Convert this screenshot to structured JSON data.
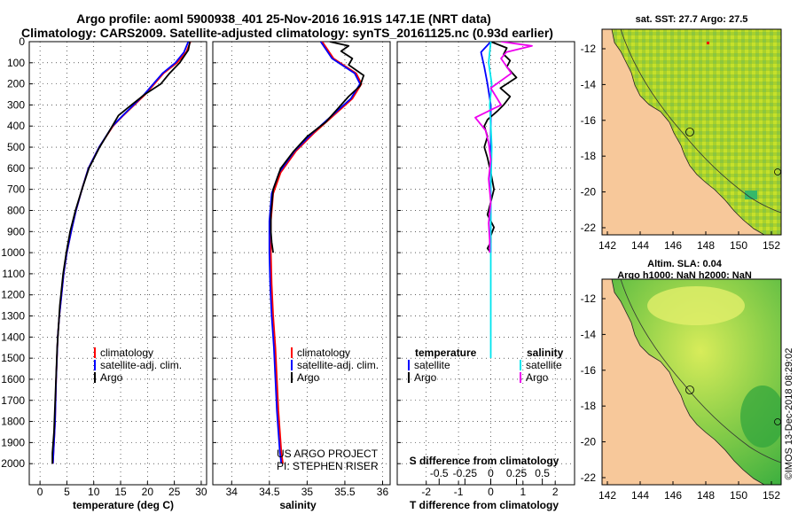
{
  "header": {
    "title_line1": "Argo profile: aoml 5900938_401 25-Nov-2016 16.91S 147.1E (NRT data)",
    "title_line2": "Climatology: CARS2009. Satellite-adjusted climatology: synTS_20161125.nc (0.93d earlier)"
  },
  "colors": {
    "climatology": "#ff0000",
    "satellite": "#0000ff",
    "argo": "#000000",
    "s_satellite": "#00e5ee",
    "s_argo": "#ee00ee",
    "land": "#f7c89a",
    "sst_main": "#99cc33"
  },
  "chart_data": [
    {
      "type": "line",
      "id": "temperature",
      "xlabel": "temperature (deg C)",
      "xlim": [
        -2,
        31
      ],
      "xticks": [
        0,
        5,
        10,
        15,
        20,
        25,
        30
      ],
      "ylim": [
        2100,
        0
      ],
      "yticks": [
        0,
        100,
        200,
        300,
        400,
        500,
        600,
        700,
        800,
        900,
        1000,
        1100,
        1200,
        1300,
        1400,
        1500,
        1600,
        1700,
        1800,
        1900,
        2000
      ],
      "legend": [
        "climatology",
        "satellite-adj. clim.",
        "Argo"
      ],
      "series": [
        {
          "name": "climatology",
          "x": [
            28.0,
            27.2,
            25.5,
            23.0,
            19.6,
            15.5,
            13.6,
            11.0,
            9.0,
            7.8,
            6.7,
            5.8,
            5.0,
            4.4,
            4.0,
            3.6,
            3.3,
            3.0,
            2.8,
            2.6,
            2.4
          ],
          "y": [
            0,
            50,
            100,
            150,
            250,
            350,
            400,
            500,
            600,
            700,
            800,
            900,
            1000,
            1100,
            1200,
            1300,
            1400,
            1600,
            1800,
            1900,
            2000
          ]
        },
        {
          "name": "satellite-adj. clim.",
          "x": [
            27.6,
            26.8,
            25.2,
            22.8,
            19.4,
            15.4,
            13.5,
            11.0,
            9.0,
            7.8,
            6.7,
            5.8,
            5.0,
            4.4,
            4.0,
            3.6,
            3.3,
            3.0,
            2.8,
            2.6,
            2.4
          ],
          "y": [
            0,
            50,
            100,
            150,
            250,
            350,
            400,
            500,
            600,
            700,
            800,
            900,
            1000,
            1100,
            1200,
            1300,
            1400,
            1600,
            1800,
            1900,
            2000
          ]
        },
        {
          "name": "Argo",
          "x": [
            27.9,
            27.6,
            26.0,
            24.1,
            22.5,
            19.5,
            17.0,
            14.6,
            13.0,
            11.1,
            9.1,
            7.8,
            6.6,
            5.6,
            4.9,
            4.3,
            3.7,
            3.2,
            2.9,
            2.6,
            2.3,
            2.3
          ],
          "y": [
            0,
            40,
            100,
            150,
            200,
            250,
            300,
            350,
            420,
            500,
            600,
            700,
            800,
            900,
            1000,
            1100,
            1250,
            1450,
            1650,
            1850,
            1950,
            2000
          ]
        }
      ]
    },
    {
      "type": "line",
      "id": "salinity",
      "xlabel": "salinity",
      "xlim": [
        33.75,
        36.1
      ],
      "xticks": [
        34,
        34.5,
        35,
        35.5,
        36
      ],
      "ylim": [
        2100,
        0
      ],
      "legend": [
        "climatology",
        "satellite-adj. clim.",
        "Argo"
      ],
      "credit": [
        "US ARGO PROJECT",
        "PI: STEPHEN RISER"
      ],
      "series": [
        {
          "name": "climatology",
          "x": [
            35.2,
            35.35,
            35.65,
            35.72,
            35.6,
            35.35,
            35.1,
            34.85,
            34.65,
            34.55,
            34.52,
            34.52,
            34.53,
            34.55,
            34.58,
            34.6,
            34.62,
            34.64,
            34.66,
            34.68
          ],
          "y": [
            0,
            80,
            150,
            200,
            270,
            350,
            430,
            520,
            620,
            720,
            850,
            1000,
            1150,
            1300,
            1450,
            1600,
            1750,
            1850,
            1950,
            2000
          ]
        },
        {
          "name": "satellite-adj. clim.",
          "x": [
            35.18,
            35.33,
            35.63,
            35.7,
            35.58,
            35.33,
            35.08,
            34.83,
            34.63,
            34.53,
            34.5,
            34.5,
            34.51,
            34.53,
            34.56,
            34.58,
            34.6,
            34.62,
            34.64,
            34.66
          ],
          "y": [
            0,
            80,
            150,
            200,
            270,
            350,
            430,
            520,
            620,
            720,
            850,
            1000,
            1150,
            1300,
            1450,
            1600,
            1750,
            1850,
            1950,
            2000
          ]
        },
        {
          "name": "Argo",
          "x": [
            35.3,
            35.55,
            35.45,
            35.6,
            35.55,
            35.75,
            35.7,
            35.55,
            35.4,
            35.25,
            35.0,
            34.82,
            34.65,
            34.55,
            34.52,
            34.52,
            34.53,
            34.55
          ],
          "y": [
            0,
            20,
            45,
            80,
            110,
            160,
            210,
            260,
            320,
            380,
            450,
            520,
            600,
            700,
            820,
            900,
            950,
            1000
          ]
        }
      ]
    },
    {
      "type": "line",
      "id": "difference",
      "xlabel_bottom": "T difference from climatology",
      "xlabel_top": "S difference from climatology",
      "xlim": [
        -2.9,
        2.6
      ],
      "xticks": [
        -2,
        -1,
        0,
        1,
        2
      ],
      "xtick_labels": [
        "-2",
        "-1",
        "0",
        "1",
        "2"
      ],
      "s_xticks": [
        -0.5,
        -0.25,
        0,
        0.25,
        0.5
      ],
      "s_xtick_labels": [
        "-0.5",
        "-0.25",
        "0",
        "0.25",
        "0.5"
      ],
      "legend_left_title": "temperature",
      "legend_right_title": "salinity",
      "legend_left": [
        "satellite",
        "Argo"
      ],
      "legend_right": [
        "satellite",
        "Argo"
      ],
      "series": [
        {
          "name": "T satellite",
          "x": [
            0.0,
            -0.3,
            -0.2,
            -0.1,
            0.0,
            0.0,
            0.0,
            0.0,
            0.0
          ],
          "y": [
            0,
            50,
            120,
            200,
            300,
            400,
            500,
            700,
            1000
          ]
        },
        {
          "name": "T Argo",
          "x": [
            0.0,
            0.5,
            0.4,
            0.6,
            0.5,
            0.8,
            0.3,
            0.6,
            0.4,
            0.2,
            -0.1,
            -0.2,
            -0.1,
            -0.2,
            -0.1,
            0.0,
            0.1,
            0.0,
            -0.1,
            0.1,
            0.0,
            0.0,
            -0.1,
            0.0
          ],
          "y": [
            0,
            30,
            60,
            90,
            120,
            170,
            220,
            260,
            300,
            330,
            370,
            400,
            450,
            500,
            550,
            620,
            700,
            760,
            820,
            880,
            920,
            950,
            980,
            1000
          ]
        },
        {
          "name": "S satellite",
          "x": [
            0.0,
            -0.02,
            0.01,
            -0.01,
            0.0,
            0.01,
            0.0,
            0.0,
            0.0
          ],
          "y": [
            0,
            100,
            200,
            300,
            400,
            500,
            700,
            1000,
            1500
          ]
        },
        {
          "name": "S Argo",
          "x": [
            0.1,
            0.4,
            0.15,
            0.1,
            0.2,
            0.0,
            0.1,
            -0.15,
            -0.05,
            -0.02,
            0.0,
            -0.02,
            0.0,
            -0.02,
            -0.01,
            -0.01
          ],
          "y": [
            0,
            20,
            50,
            80,
            150,
            220,
            300,
            360,
            420,
            480,
            560,
            650,
            760,
            860,
            940,
            1000
          ]
        }
      ]
    }
  ],
  "maps": {
    "sst": {
      "title": "sat. SST: 27.7 Argo: 27.5",
      "yticks": [
        "-12",
        "-14",
        "-16",
        "-18",
        "-20",
        "-22"
      ],
      "xticks": [
        "142",
        "144",
        "146",
        "148",
        "150",
        "152"
      ]
    },
    "sla": {
      "title_line1": "Altim. SLA: 0.04",
      "title_line2": "Argo h1000: NaN h2000: NaN",
      "yticks": [
        "-12",
        "-14",
        "-16",
        "-18",
        "-20",
        "-22"
      ],
      "xticks": [
        "142",
        "144",
        "146",
        "148",
        "150",
        "152"
      ]
    }
  },
  "footer": {
    "imos_stamp": "©IMOS 13-Dec-2018 08:29:02"
  }
}
